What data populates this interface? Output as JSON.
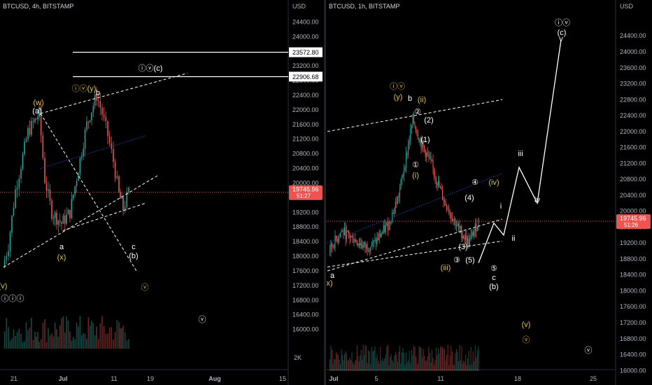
{
  "colors": {
    "background": "#000000",
    "up_candle": "#26a69a",
    "down_candle": "#ef5350",
    "wave_yellow": "#e0c04a",
    "line_white": "#ffffff",
    "trend_blue": "#2962ff",
    "price_line": "#ef5350",
    "price_label_bg": "#ef5350"
  },
  "chart_data": [
    {
      "type": "candlestick",
      "title": "BTCUSD, 4h, BITSTAMP",
      "currency": "USD",
      "x_ticks": [
        "21",
        "Jul",
        "11",
        "19",
        "Aug",
        "15"
      ],
      "y_ticks": [
        24400,
        24000,
        23600,
        23200,
        22800,
        22400,
        22000,
        21600,
        21200,
        20800,
        20400,
        20000,
        19600,
        19200,
        18800,
        18400,
        18000,
        17600,
        17200,
        16800,
        16400,
        16000
      ],
      "ylim": [
        15400,
        25000
      ],
      "volume_axis_label": "2K",
      "price_path_x": [
        "19",
        "20",
        "21",
        "22",
        "24",
        "26",
        "28",
        "30",
        "Jul",
        "3",
        "5",
        "6",
        "8",
        "9",
        "10",
        "11",
        "12",
        "13",
        "14",
        "15"
      ],
      "price_path": [
        17700,
        18300,
        19800,
        20500,
        21400,
        21700,
        21900,
        20100,
        19200,
        18900,
        19200,
        20400,
        21600,
        22400,
        21900,
        21300,
        20600,
        19700,
        19300,
        19745
      ],
      "horizontal_levels": [
        {
          "label": "23572.80",
          "value": 23572.8
        },
        {
          "label": "22906.68",
          "value": 22906.68
        }
      ],
      "last_price": {
        "value": "19745.96",
        "countdown": "51:27"
      },
      "wave_labels": [
        {
          "text": "(w)",
          "color": "yellow"
        },
        {
          "text": "(a)",
          "color": "white"
        },
        {
          "text": "ⓘⓥ(y)",
          "color": "yellow"
        },
        {
          "text": "b",
          "color": "white"
        },
        {
          "text": "ⓘⓥ(c)",
          "color": "white"
        },
        {
          "text": "a",
          "color": "white"
        },
        {
          "text": "(x)",
          "color": "yellow"
        },
        {
          "text": "c",
          "color": "white"
        },
        {
          "text": "(b)",
          "color": "white"
        },
        {
          "text": "(v)",
          "color": "yellow"
        },
        {
          "text": "ⓥ",
          "color": "yellow"
        },
        {
          "text": "ⓘⓘⓘ",
          "color": "white"
        },
        {
          "text": "ⓥ",
          "color": "white"
        }
      ]
    },
    {
      "type": "candlestick",
      "title": "BTCUSD, 1h, BITSTAMP",
      "currency": "USD",
      "x_ticks": [
        "Jul",
        "5",
        "11",
        "18",
        "25"
      ],
      "y_ticks": [
        24400,
        24000,
        23600,
        23200,
        22800,
        22400,
        22000,
        21600,
        21200,
        20800,
        20400,
        20000,
        19600,
        19200,
        18800,
        18400,
        18000,
        17600,
        17200,
        16800,
        16400,
        16000
      ],
      "ylim": [
        15900,
        25300
      ],
      "price_path_x": [
        "Jul",
        "2",
        "3",
        "4",
        "5",
        "6",
        "7",
        "8",
        "9",
        "10",
        "11",
        "12",
        "13",
        "14",
        "15"
      ],
      "price_path": [
        19000,
        19500,
        19300,
        19100,
        19200,
        19700,
        20400,
        21500,
        22300,
        21700,
        21200,
        20300,
        19600,
        19200,
        19745
      ],
      "projection_path_x": [
        "15",
        "16",
        "17",
        "18",
        "20",
        "22",
        "24"
      ],
      "projection_path": [
        18700,
        19700,
        19400,
        21100,
        20200,
        24300,
        24300
      ],
      "last_price": {
        "value": "19745.96",
        "countdown": "51:26"
      },
      "wave_labels": [
        {
          "text": "ⓘⓥ",
          "color": "yellow"
        },
        {
          "text": "(y)",
          "color": "yellow"
        },
        {
          "text": "b",
          "color": "white"
        },
        {
          "text": "(ii)",
          "color": "yellow"
        },
        {
          "text": "②",
          "color": "white"
        },
        {
          "text": "(2)",
          "color": "white"
        },
        {
          "text": "①",
          "color": "white"
        },
        {
          "text": "(1)",
          "color": "white"
        },
        {
          "text": "(i)",
          "color": "yellow"
        },
        {
          "text": "④",
          "color": "white"
        },
        {
          "text": "(iv)",
          "color": "yellow"
        },
        {
          "text": "(4)",
          "color": "white"
        },
        {
          "text": "(3)",
          "color": "white"
        },
        {
          "text": "③",
          "color": "white"
        },
        {
          "text": "(5)",
          "color": "white"
        },
        {
          "text": "(iii)",
          "color": "yellow"
        },
        {
          "text": "⑤",
          "color": "white"
        },
        {
          "text": "c",
          "color": "white"
        },
        {
          "text": "(b)",
          "color": "white"
        },
        {
          "text": "a",
          "color": "white"
        },
        {
          "text": "x)",
          "color": "yellow"
        },
        {
          "text": "i",
          "color": "white"
        },
        {
          "text": "ii",
          "color": "white"
        },
        {
          "text": "iii",
          "color": "white"
        },
        {
          "text": "iv",
          "color": "white"
        },
        {
          "text": "v",
          "color": "white"
        },
        {
          "text": "ⓘⓥ",
          "color": "white"
        },
        {
          "text": "(c)",
          "color": "white"
        },
        {
          "text": "(v)",
          "color": "yellow"
        },
        {
          "text": "ⓥ",
          "color": "yellow"
        },
        {
          "text": "ⓥ",
          "color": "white"
        }
      ]
    }
  ]
}
